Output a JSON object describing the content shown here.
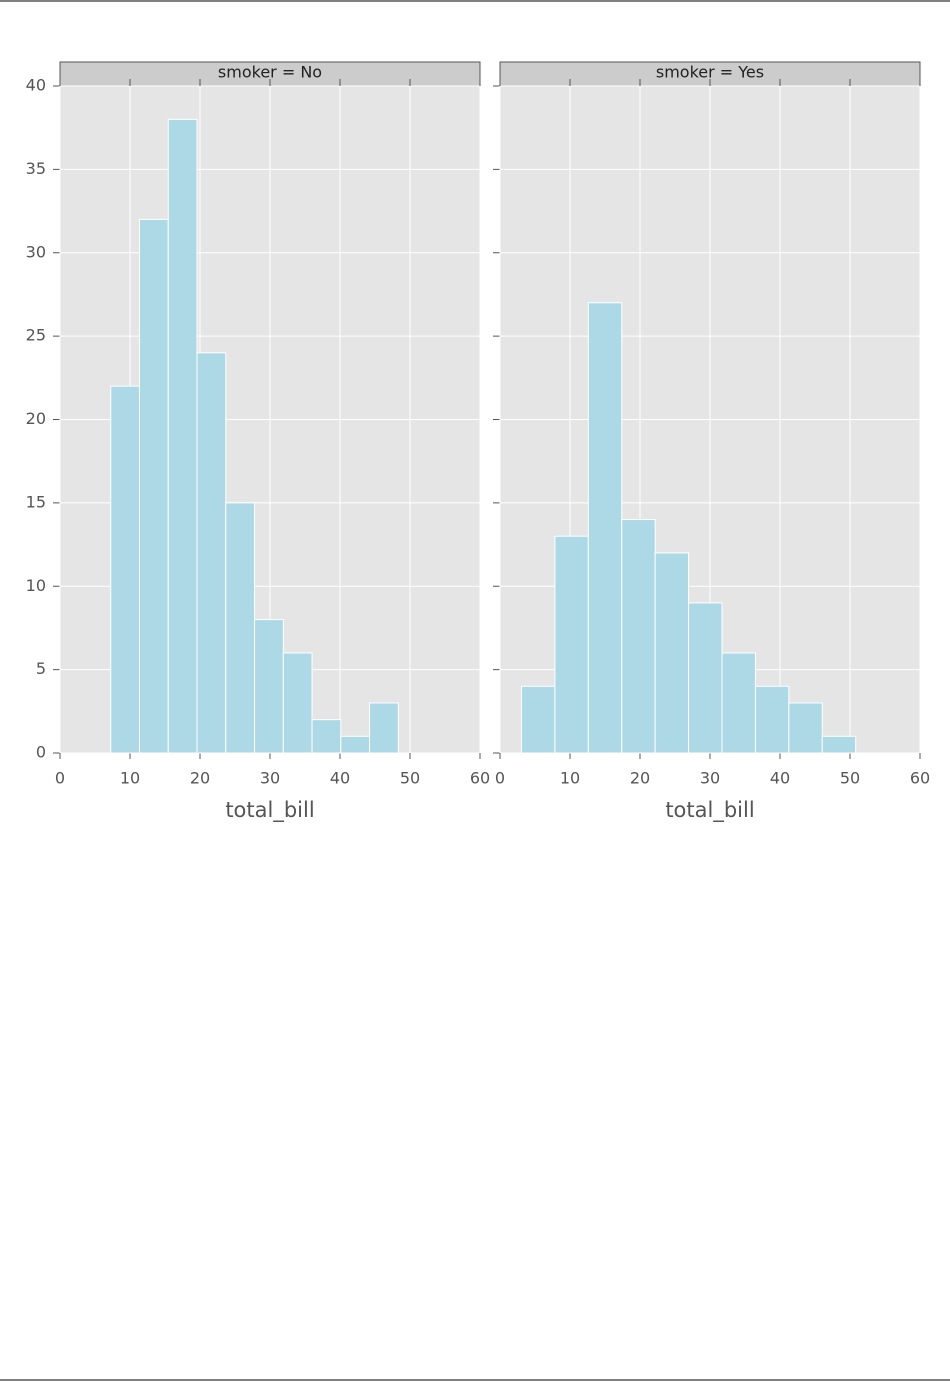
{
  "chart_data": [
    {
      "type": "histogram",
      "strip_label": "smoker = No",
      "x_label": "total_bill",
      "bins": [
        7.25,
        11.358,
        15.466,
        19.574,
        23.682,
        27.79,
        31.898,
        36.006,
        40.114,
        44.222,
        48.33
      ],
      "counts": [
        22,
        32,
        38,
        24,
        15,
        8,
        6,
        2,
        1,
        3
      ],
      "color": "#add8e6",
      "xlim": [
        0,
        60
      ],
      "xticks": [
        0,
        10,
        20,
        30,
        40,
        50,
        60
      ],
      "ylim": [
        0,
        40
      ],
      "yticks": [
        0,
        5,
        10,
        15,
        20,
        25,
        30,
        35,
        40
      ],
      "grid": true,
      "show_ytick_labels": true
    },
    {
      "type": "histogram",
      "strip_label": "smoker = Yes",
      "x_label": "total_bill",
      "bins": [
        3.07,
        7.844,
        12.618,
        17.392,
        22.166,
        26.94,
        31.714,
        36.488,
        41.262,
        46.036,
        50.81
      ],
      "counts": [
        4,
        13,
        27,
        14,
        12,
        9,
        6,
        4,
        3,
        1
      ],
      "color": "#add8e6",
      "xlim": [
        0,
        60
      ],
      "xticks": [
        0,
        10,
        20,
        30,
        40,
        50,
        60
      ],
      "ylim": [
        0,
        40
      ],
      "yticks": [
        0,
        5,
        10,
        15,
        20,
        25,
        30,
        35,
        40
      ],
      "grid": true,
      "show_ytick_labels": false
    }
  ]
}
